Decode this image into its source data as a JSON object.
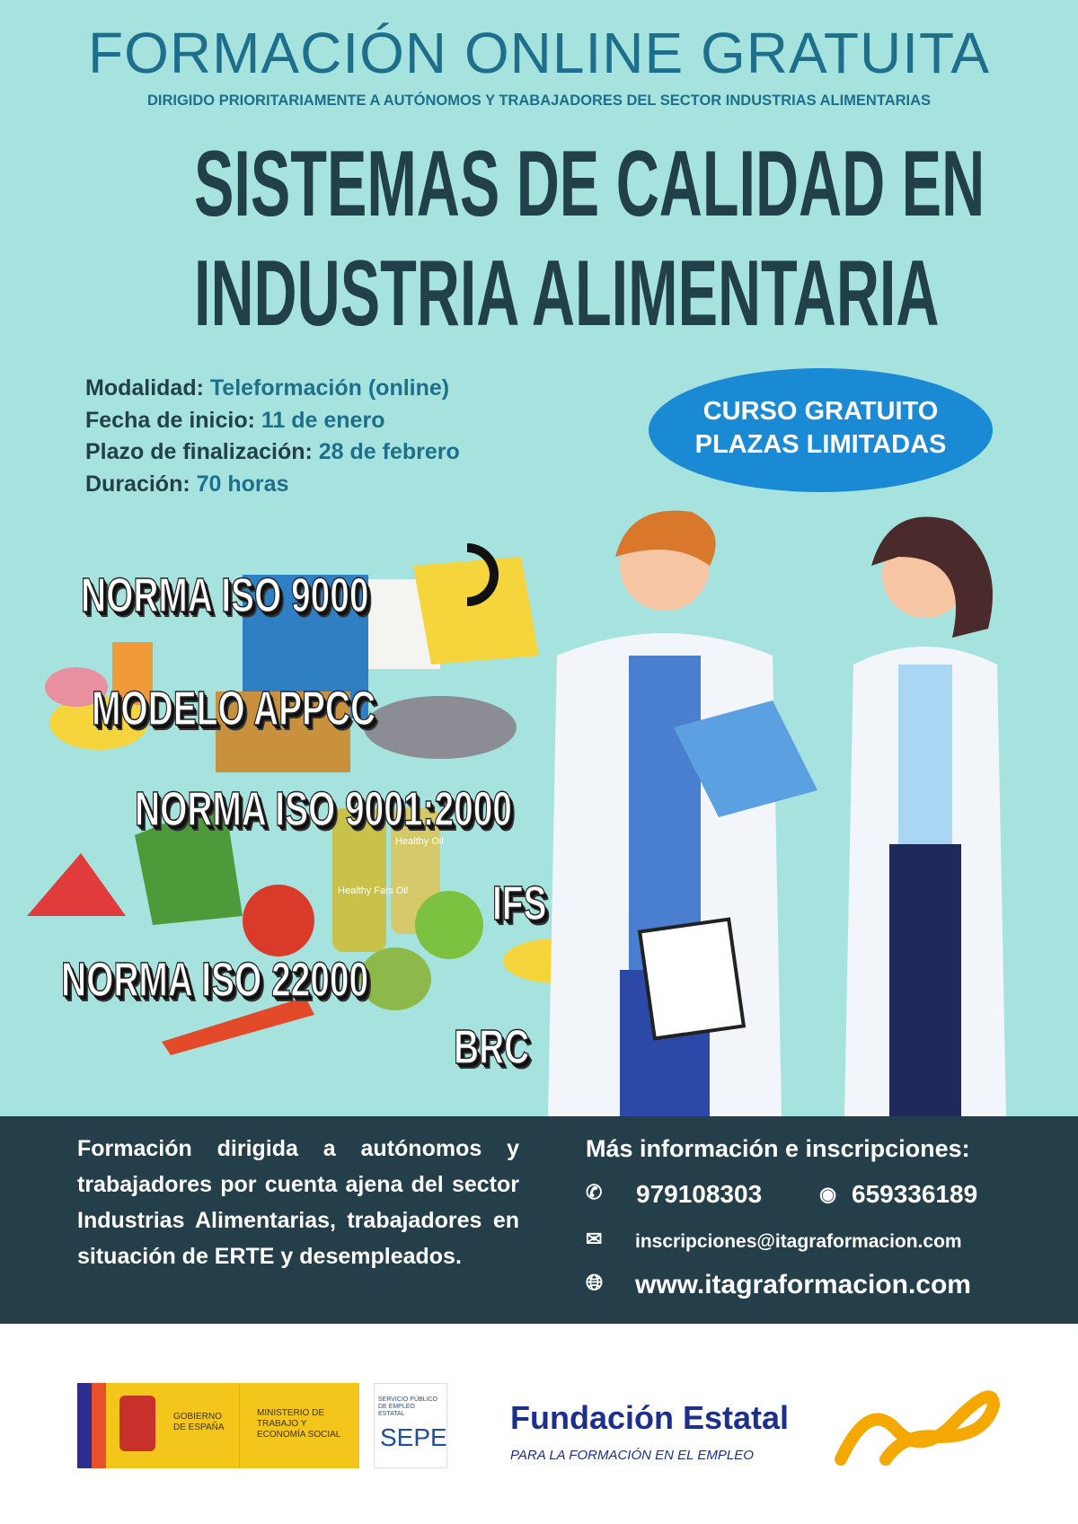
{
  "header": {
    "title": "FORMACIÓN ONLINE GRATUITA",
    "subtitle": "DIRIGIDO PRIORITARIAMENTE A AUTÓNOMOS Y TRABAJADORES DEL SECTOR INDUSTRIAS ALIMENTARIAS",
    "course_line1": "SISTEMAS DE CALIDAD EN",
    "course_line2": "INDUSTRIA ALIMENTARIA"
  },
  "details": [
    {
      "label": "Modalidad:",
      "value": "Teleformación (online)"
    },
    {
      "label": "Fecha de inicio:",
      "value": "11 de enero"
    },
    {
      "label": "Plazo de finalización:",
      "value": "28 de febrero"
    },
    {
      "label": "Duración:",
      "value": "70 horas"
    }
  ],
  "badge": {
    "line1": "CURSO GRATUITO",
    "line2": "PLAZAS LIMITADAS"
  },
  "norms": [
    "NORMA ISO 9000",
    "MODELO APPCC",
    "NORMA ISO 9001:2000",
    "IFS",
    "NORMA ISO 22000",
    "BRC"
  ],
  "illustration_labels": [
    "Healthy Fats Oil",
    "Healthy Oil"
  ],
  "panel": {
    "description": "Formación dirigida a autónomos y trabajadores por cuenta ajena del sector Industrias Alimentarias, trabajadores en situación de ERTE y desempleados.",
    "contact_title": "Más información e inscripciones:",
    "phone": "979108303",
    "whatsapp": "659336189",
    "email": "inscripciones@itagraformacion.com",
    "web": "www.itagraformacion.com",
    "icons": [
      "phone-icon",
      "whatsapp-icon",
      "mail-icon",
      "globe-icon"
    ]
  },
  "logos": {
    "gobierno": "GOBIERNO DE ESPAÑA",
    "ministerio": "MINISTERIO DE TRABAJO Y ECONOMÍA SOCIAL",
    "sepe_small": "SERVICIO PÚBLICO DE EMPLEO ESTATAL",
    "sepe": "SEPE",
    "fundacion": "Fundación Estatal",
    "fundacion_sub": "PARA LA FORMACIÓN EN EL EMPLEO"
  },
  "colors": {
    "background": "#a7e3de",
    "title": "#1e6f8c",
    "dark": "#22404a",
    "badge": "#1a8ad4",
    "panel": "#243f49",
    "fundae_orange": "#f4a800",
    "fundae_blue": "#1d2f8c"
  }
}
